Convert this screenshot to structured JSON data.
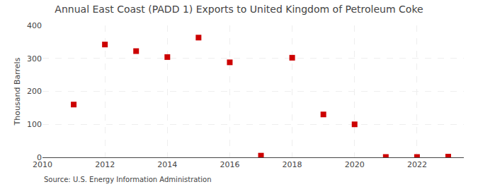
{
  "chart_data": {
    "type": "scatter",
    "title": "Annual East Coast (PADD 1) Exports to United Kingdom of Petroleum Coke",
    "ylabel": "Thousand Barrels",
    "annotations": [
      "Source: U.S. Energy Information Administration"
    ],
    "x": [
      2011,
      2012,
      2013,
      2014,
      2015,
      2016,
      2017,
      2018,
      2019,
      2020,
      2021,
      2022,
      2023
    ],
    "values": [
      160,
      342,
      322,
      304,
      363,
      288,
      5,
      302,
      130,
      100,
      1,
      1,
      2
    ],
    "color": "#cc0000",
    "marker": "square",
    "xlim": [
      2010,
      2023.5
    ],
    "xticks": [
      2010,
      2012,
      2014,
      2016,
      2018,
      2020,
      2022
    ],
    "ylim": [
      0,
      400
    ],
    "yticks": [
      0,
      100,
      200,
      300,
      400
    ],
    "grid": true
  }
}
